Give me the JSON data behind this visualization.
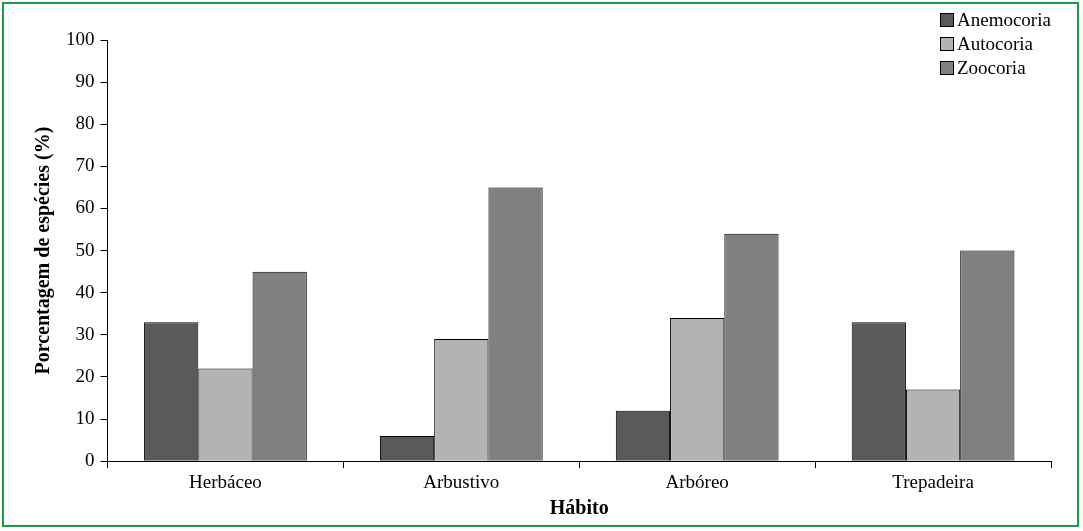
{
  "chart_data": {
    "type": "bar",
    "xlabel": "Hábito",
    "ylabel": "Porcentagem de espécies (%)",
    "categories": [
      "Herbáceo",
      "Arbustivo",
      "Arbóreo",
      "Trepadeira"
    ],
    "series": [
      {
        "name": "Anemocoria",
        "color": "#5a5a5a",
        "values": [
          33,
          6,
          12,
          33
        ]
      },
      {
        "name": "Autocoria",
        "color": "#b3b3b3",
        "values": [
          22,
          29,
          34,
          17
        ]
      },
      {
        "name": "Zoocoria",
        "color": "#808080",
        "values": [
          45,
          65,
          54,
          50
        ]
      }
    ],
    "ylim": [
      0,
      100
    ],
    "yticks": [
      0,
      10,
      20,
      30,
      40,
      50,
      60,
      70,
      80,
      90,
      100
    ],
    "grid": false,
    "legend": "top right"
  }
}
